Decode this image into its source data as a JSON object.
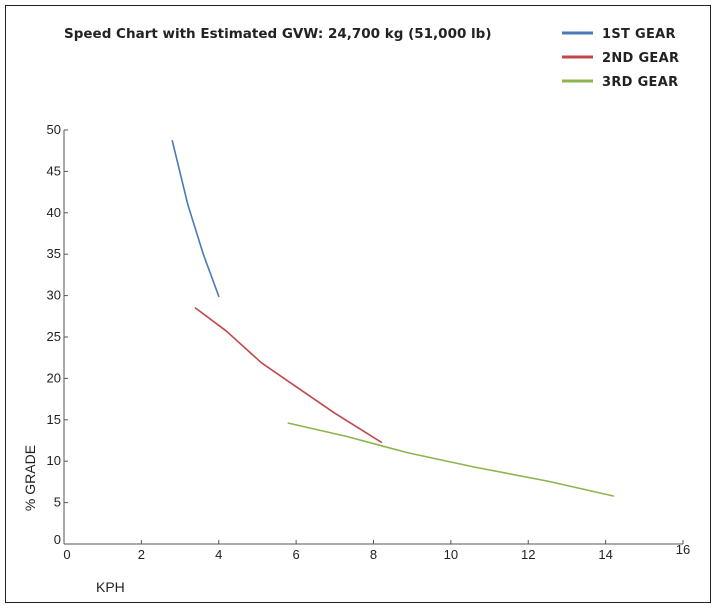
{
  "chart_data": {
    "type": "line",
    "title": "Speed Chart with Estimated GVW: 24,700 kg (51,000 lb)",
    "xlabel": "KPH",
    "ylabel": "% GRADE",
    "xlim": [
      0,
      16
    ],
    "ylim": [
      0,
      50
    ],
    "x_ticks": [
      "0",
      "2",
      "4",
      "6",
      "8",
      "10",
      "12",
      "14",
      "16"
    ],
    "y_ticks": [
      "0",
      "5",
      "10",
      "15",
      "20",
      "25",
      "30",
      "35",
      "40",
      "45",
      "50"
    ],
    "grid": false,
    "legend_position": "top-right",
    "series": [
      {
        "name": "1ST GEAR",
        "color": "#4a7bb7",
        "x": [
          2.8,
          3.2,
          3.6,
          4.0
        ],
        "y": [
          48.7,
          41.0,
          35.0,
          29.9
        ]
      },
      {
        "name": "2ND GEAR",
        "color": "#c0474a",
        "x": [
          3.4,
          4.2,
          5.1,
          6.0,
          7.0,
          8.2
        ],
        "y": [
          28.5,
          25.7,
          21.9,
          19.0,
          15.8,
          12.3
        ]
      },
      {
        "name": "3RD GEAR",
        "color": "#8db54e",
        "x": [
          5.8,
          7.3,
          8.9,
          10.6,
          12.5,
          14.2
        ],
        "y": [
          14.6,
          13.0,
          11.0,
          9.3,
          7.6,
          5.8
        ]
      }
    ]
  }
}
